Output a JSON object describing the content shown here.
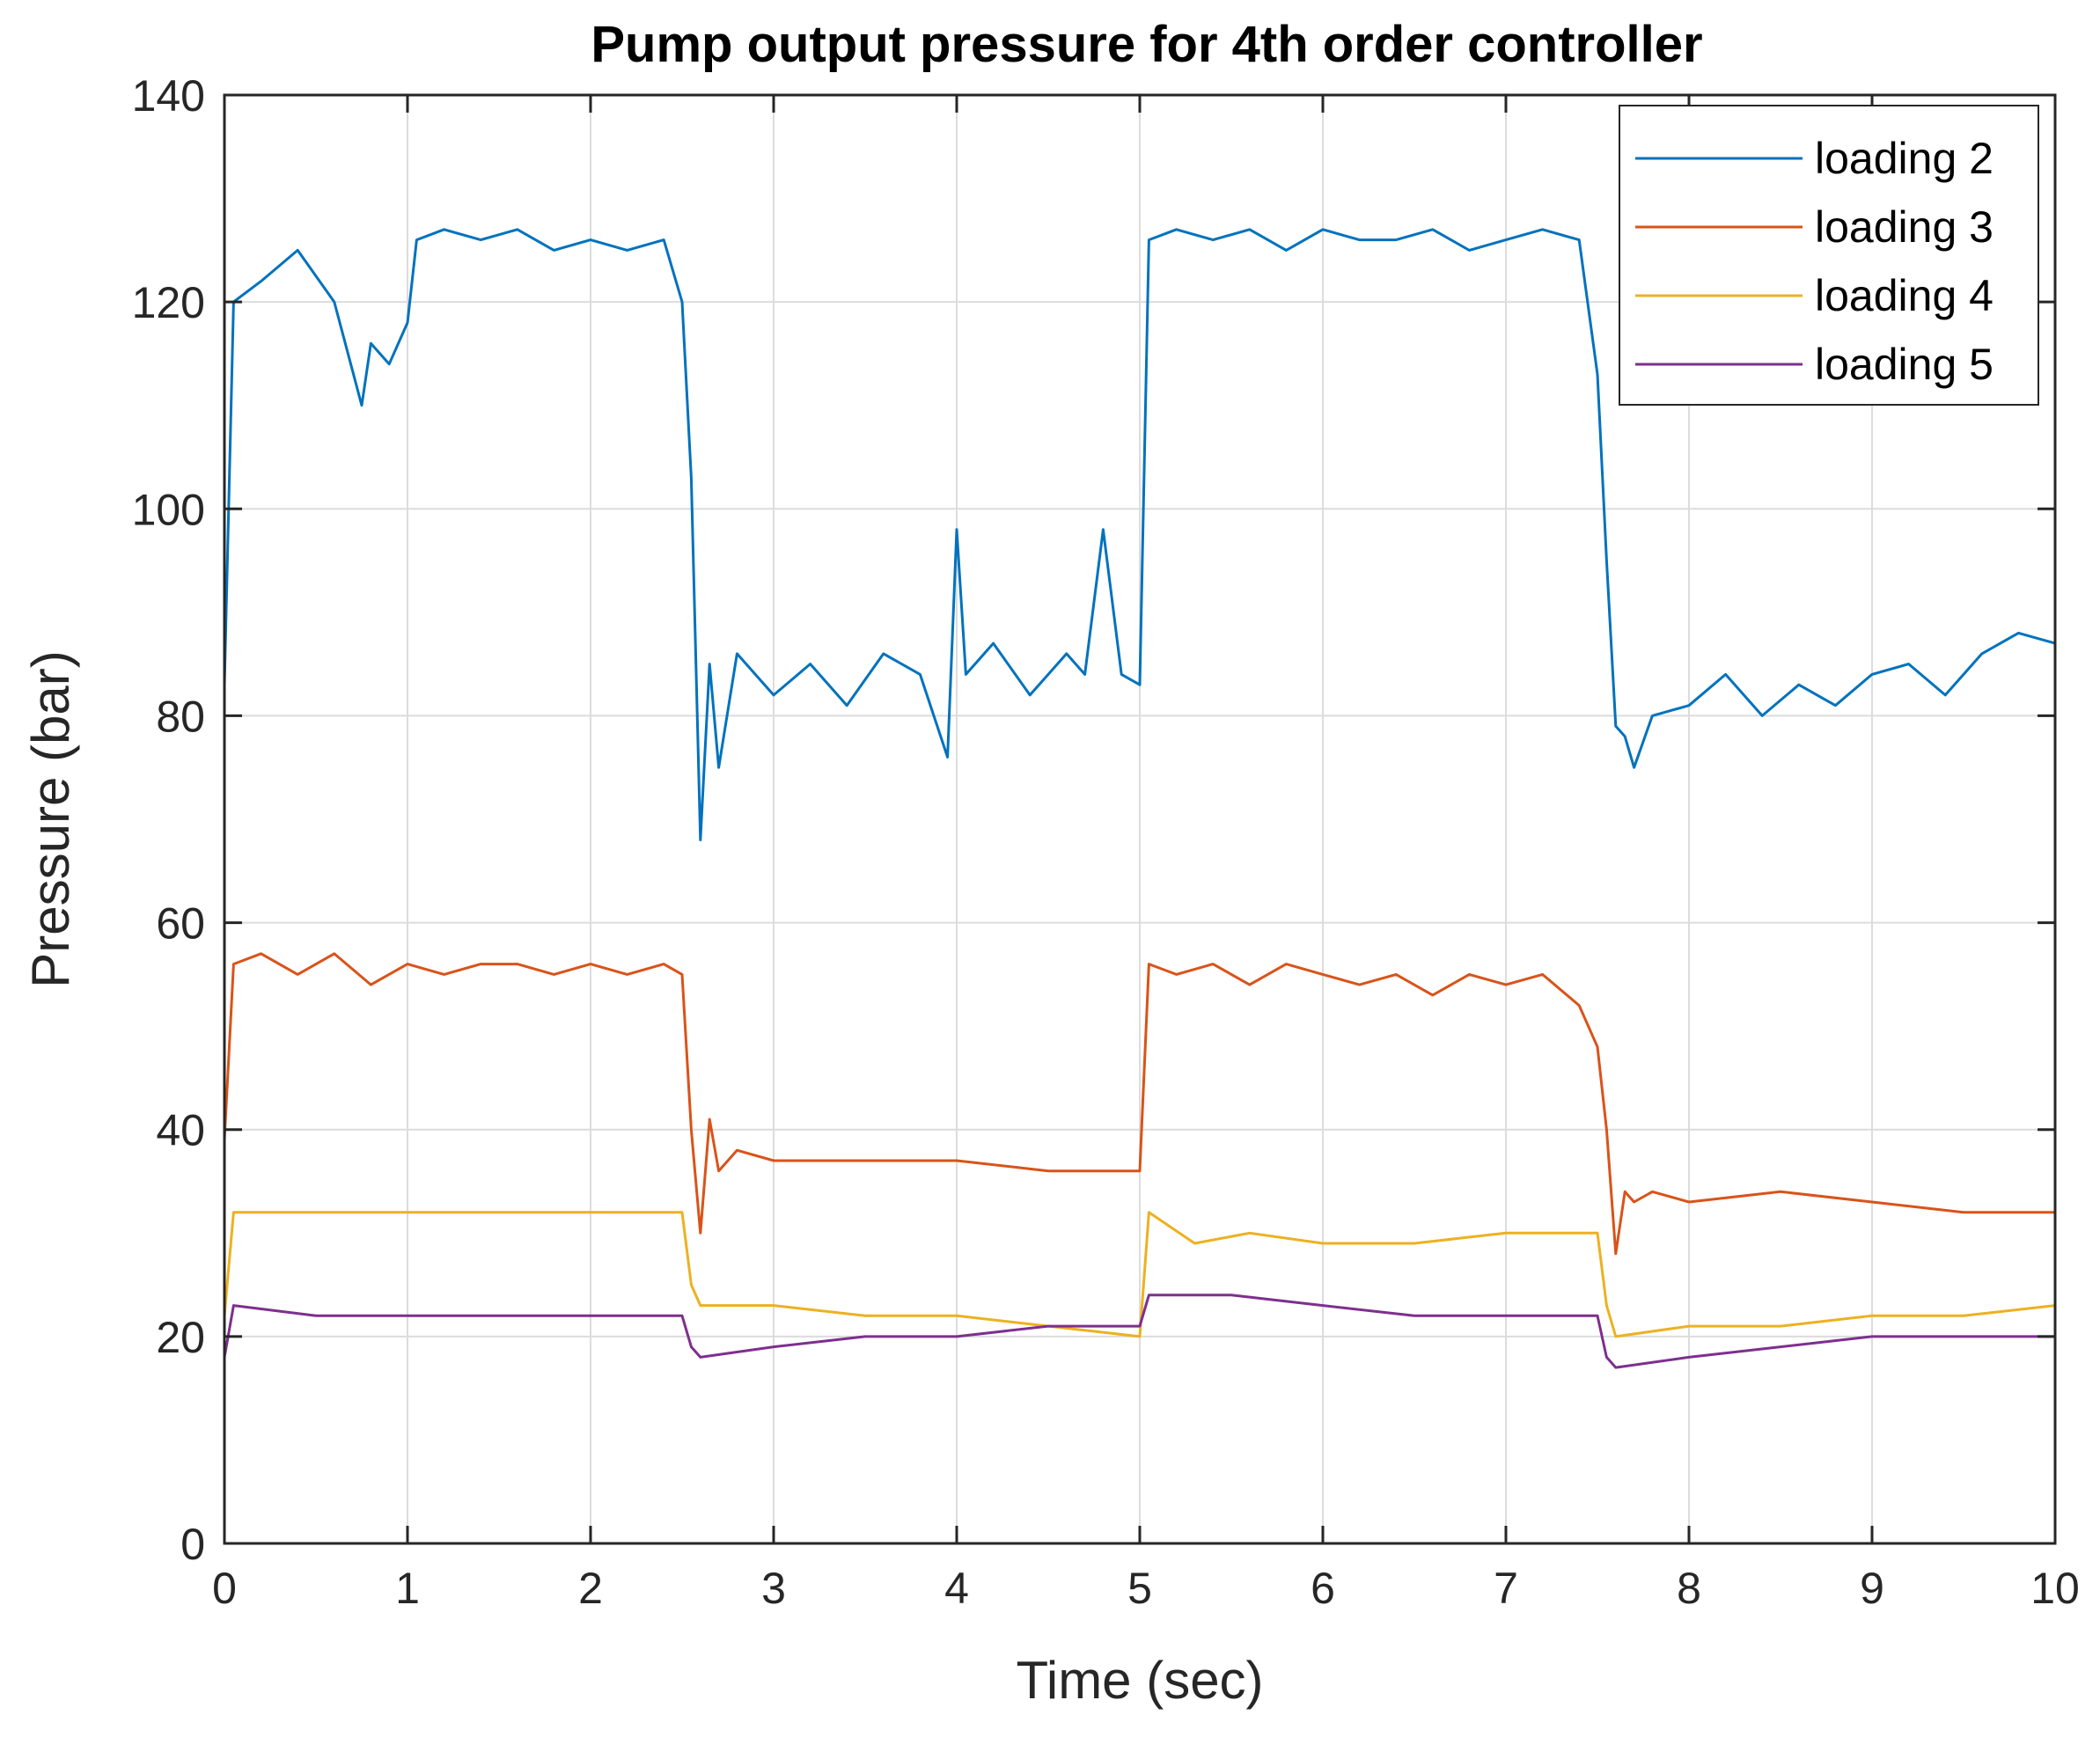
{
  "chart_data": {
    "type": "line",
    "title": "Pump output pressure for 4th order controller",
    "xlabel": "Time (sec)",
    "ylabel": "Pressure (bar)",
    "xlim": [
      0,
      10
    ],
    "ylim": [
      0,
      140
    ],
    "xticks": [
      0,
      1,
      2,
      3,
      4,
      5,
      6,
      7,
      8,
      9,
      10
    ],
    "yticks": [
      0,
      20,
      40,
      60,
      80,
      100,
      120,
      140
    ],
    "grid": true,
    "legend_position": "top-right",
    "series": [
      {
        "name": "loading 2",
        "color": "#0072BD",
        "x": [
          0,
          0.05,
          0.2,
          0.4,
          0.6,
          0.75,
          0.8,
          0.9,
          1.0,
          1.05,
          1.2,
          1.4,
          1.6,
          1.8,
          2.0,
          2.2,
          2.4,
          2.5,
          2.55,
          2.6,
          2.65,
          2.7,
          2.8,
          3.0,
          3.2,
          3.4,
          3.6,
          3.8,
          3.95,
          4.0,
          4.05,
          4.2,
          4.4,
          4.6,
          4.7,
          4.8,
          4.9,
          5.0,
          5.05,
          5.2,
          5.4,
          5.6,
          5.8,
          6.0,
          6.2,
          6.4,
          6.6,
          6.8,
          7.0,
          7.2,
          7.4,
          7.5,
          7.55,
          7.6,
          7.65,
          7.7,
          7.8,
          8.0,
          8.2,
          8.4,
          8.6,
          8.8,
          9.0,
          9.2,
          9.4,
          9.6,
          9.8,
          10.0
        ],
        "values": [
          83,
          120,
          122,
          125,
          120,
          110,
          116,
          114,
          118,
          126,
          127,
          126,
          127,
          125,
          126,
          125,
          126,
          120,
          103,
          68,
          85,
          75,
          86,
          82,
          85,
          81,
          86,
          84,
          76,
          98,
          84,
          87,
          82,
          86,
          84,
          98,
          84,
          83,
          126,
          127,
          126,
          127,
          125,
          127,
          126,
          126,
          127,
          125,
          126,
          127,
          126,
          113,
          95,
          79,
          78,
          75,
          80,
          81,
          84,
          80,
          83,
          81,
          84,
          85,
          82,
          86,
          88,
          87
        ]
      },
      {
        "name": "loading 3",
        "color": "#D95319",
        "x": [
          0,
          0.05,
          0.2,
          0.4,
          0.6,
          0.8,
          1.0,
          1.2,
          1.4,
          1.6,
          1.8,
          2.0,
          2.2,
          2.4,
          2.5,
          2.55,
          2.6,
          2.65,
          2.7,
          2.8,
          3.0,
          3.5,
          4.0,
          4.5,
          5.0,
          5.05,
          5.2,
          5.4,
          5.6,
          5.8,
          6.0,
          6.2,
          6.4,
          6.6,
          6.8,
          7.0,
          7.2,
          7.4,
          7.5,
          7.55,
          7.6,
          7.65,
          7.7,
          7.8,
          8.0,
          8.5,
          9.0,
          9.5,
          10.0
        ],
        "values": [
          39,
          56,
          57,
          55,
          57,
          54,
          56,
          55,
          56,
          56,
          55,
          56,
          55,
          56,
          55,
          40,
          30,
          41,
          36,
          38,
          37,
          37,
          37,
          36,
          36,
          56,
          55,
          56,
          54,
          56,
          55,
          54,
          55,
          53,
          55,
          54,
          55,
          52,
          48,
          40,
          28,
          34,
          33,
          34,
          33,
          34,
          33,
          32,
          32
        ]
      },
      {
        "name": "loading 4",
        "color": "#EDB120",
        "x": [
          0,
          0.05,
          0.5,
          1.0,
          1.5,
          2.0,
          2.5,
          2.55,
          2.6,
          3.0,
          3.5,
          4.0,
          4.5,
          5.0,
          5.05,
          5.3,
          5.6,
          6.0,
          6.5,
          7.0,
          7.5,
          7.55,
          7.6,
          8.0,
          8.5,
          9.0,
          9.5,
          10.0
        ],
        "values": [
          22,
          32,
          32,
          32,
          32,
          32,
          32,
          25,
          23,
          23,
          22,
          22,
          21,
          20,
          32,
          29,
          30,
          29,
          29,
          30,
          30,
          23,
          20,
          21,
          21,
          22,
          22,
          23
        ]
      },
      {
        "name": "loading 5",
        "color": "#7E2F8E",
        "x": [
          0,
          0.05,
          0.5,
          1.0,
          1.5,
          2.0,
          2.5,
          2.55,
          2.6,
          3.0,
          3.5,
          4.0,
          4.5,
          5.0,
          5.05,
          5.5,
          6.0,
          6.5,
          7.0,
          7.5,
          7.55,
          7.6,
          8.0,
          8.5,
          9.0,
          9.5,
          10.0
        ],
        "values": [
          18,
          23,
          22,
          22,
          22,
          22,
          22,
          19,
          18,
          19,
          20,
          20,
          21,
          21,
          24,
          24,
          23,
          22,
          22,
          22,
          18,
          17,
          18,
          19,
          20,
          20,
          20
        ]
      }
    ]
  }
}
